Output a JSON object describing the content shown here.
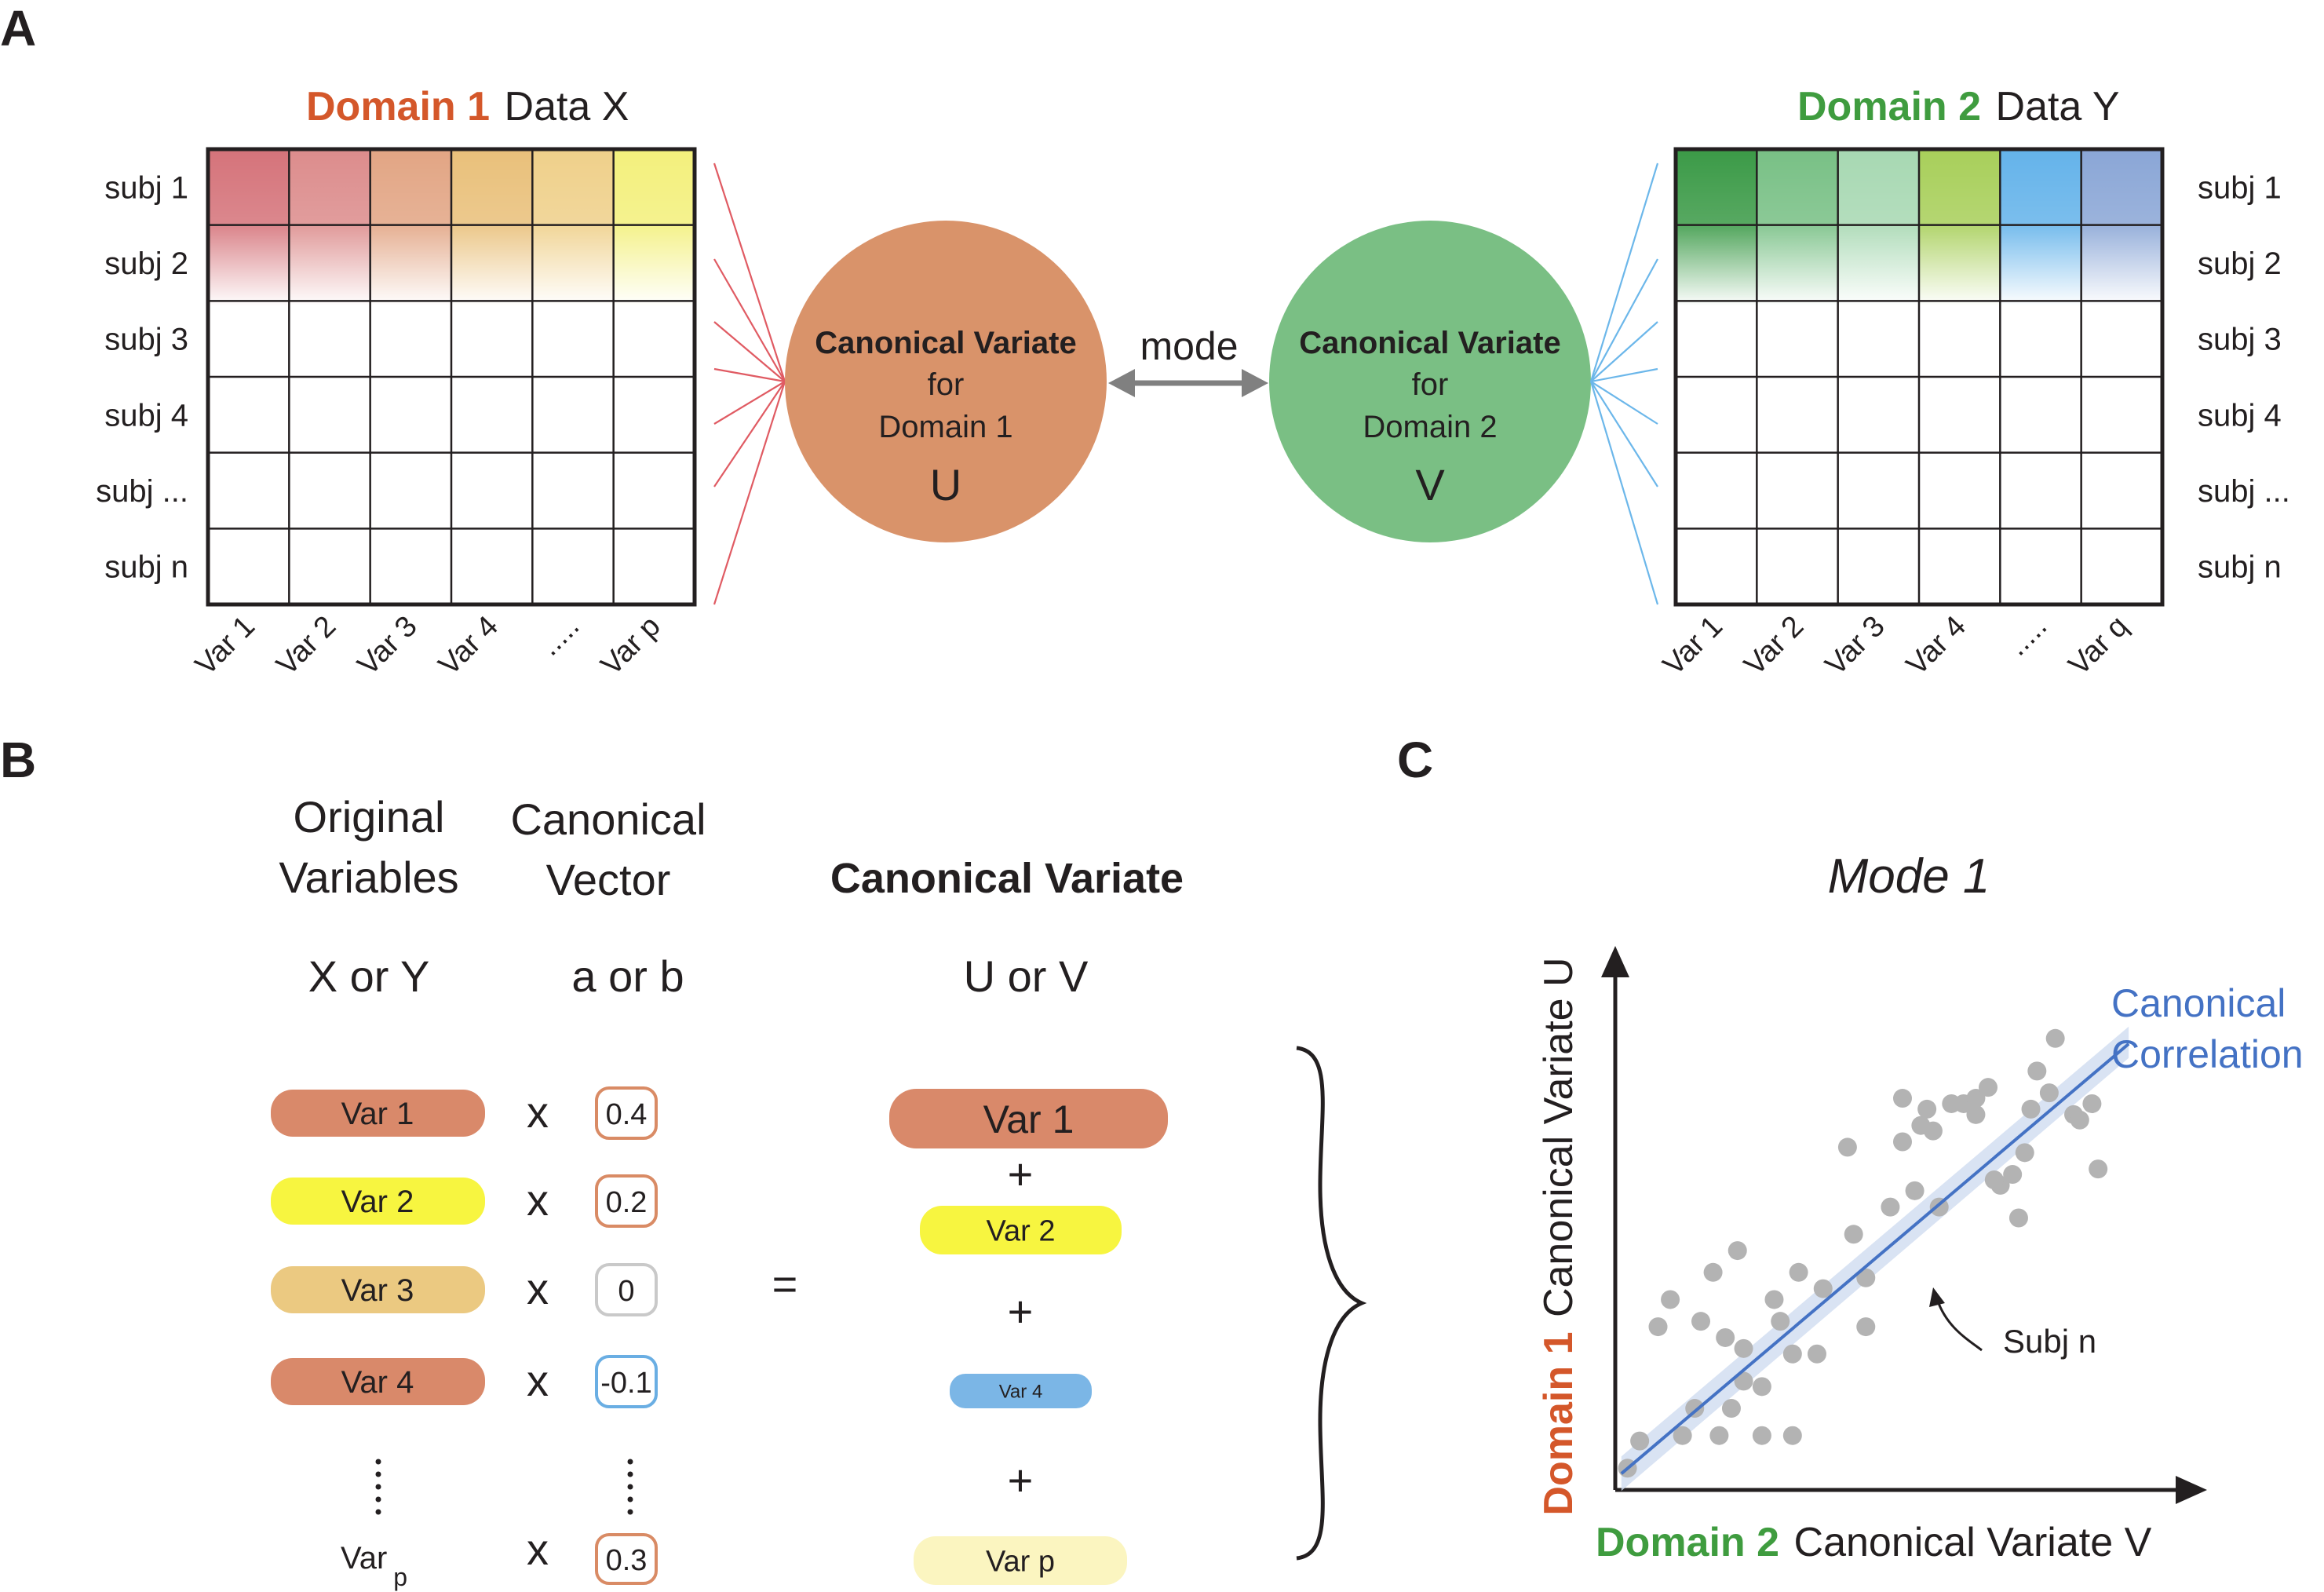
{
  "panels": {
    "a": "A",
    "b": "B",
    "c": "C"
  },
  "panel_a": {
    "domain1": {
      "domain_label": "Domain 1",
      "rest_label": "Data X",
      "color": "#d4572a",
      "rows": [
        "subj 1",
        "subj 2",
        "subj 3",
        "subj 4",
        "subj ...",
        "subj n"
      ],
      "cols": [
        "Var 1",
        "Var 2",
        "Var 3",
        "Var 4",
        ".....",
        "Var p"
      ],
      "col_colors": [
        "#d5737a",
        "#dc8c8c",
        "#e2a584",
        "#e9c07a",
        "#efd08a",
        "#f3f07c"
      ]
    },
    "domain2": {
      "domain_label": "Domain 2",
      "rest_label": "Data Y",
      "color": "#3f9c3f",
      "rows": [
        "subj 1",
        "subj 2",
        "subj 3",
        "subj 4",
        "subj ...",
        "subj n"
      ],
      "cols": [
        "Var 1",
        "Var 2",
        "Var 3",
        "Var 4",
        ".....",
        "Var q"
      ],
      "col_colors": [
        "#3b9a47",
        "#78c085",
        "#a7d8b2",
        "#a8cf5a",
        "#64b3ea",
        "#8aa6d6"
      ]
    },
    "cv1": {
      "title": "Canonical Variate",
      "line2": "for",
      "line3": "Domain 1",
      "symbol": "U",
      "color": "#d9936a"
    },
    "cv2": {
      "title": "Canonical Variate",
      "line2": "for",
      "line3": "Domain 2",
      "symbol": "V",
      "color": "#7abf84"
    },
    "mode_label": "mode"
  },
  "panel_b": {
    "headers": {
      "orig_line1": "Original",
      "orig_line2": "Variables",
      "orig_sub": "X or Y",
      "vec_line1": "Canonical",
      "vec_line2": "Vector",
      "vec_sub": "a or b",
      "var_title": "Canonical Variate",
      "var_sub": "U or V"
    },
    "rows": [
      {
        "label": "Var 1",
        "color": "#d9896a",
        "op": "x",
        "coef": "0.4",
        "coef_border": "#d98b65"
      },
      {
        "label": "Var 2",
        "color": "#f7f540",
        "op": "x",
        "coef": "0.2",
        "coef_border": "#d98b65"
      },
      {
        "label": "Var 3",
        "color": "#ebc981",
        "op": "x",
        "coef": "0",
        "coef_border": "#c9c9c9"
      },
      {
        "label": "Var 4",
        "color": "#d9896a",
        "op": "x",
        "coef": "-0.1",
        "coef_border": "#6aaee3"
      }
    ],
    "last_row": {
      "label": "Var",
      "sub": "p",
      "op": "x",
      "coef": "0.3",
      "coef_border": "#d98b65"
    },
    "equals": "=",
    "result": [
      {
        "label": "Var 1",
        "color": "#d9896a"
      },
      {
        "label": "Var 2",
        "color": "#f7f540"
      },
      {
        "label": "Var 4",
        "color": "#7bb6e6"
      },
      {
        "label": "Var p",
        "color": "#fbf5c0"
      }
    ],
    "plus": "+"
  },
  "panel_c": {
    "title": "Mode 1",
    "y_axis_domain": "Domain 1",
    "y_axis_rest": "Canonical Variate U",
    "x_axis_domain": "Domain 2",
    "x_axis_rest": "Canonical Variate V",
    "line_label_1": "Canonical",
    "line_label_2": "Correlation",
    "annotation": "Subj n",
    "domain1_color": "#d4572a",
    "domain2_color": "#3f9c3f",
    "line_color": "#4472c4"
  },
  "chart_data": {
    "type": "scatter",
    "title": "Mode 1",
    "xlabel": "Domain 2 Canonical Variate V",
    "ylabel": "Domain 1 Canonical Variate U",
    "x": [
      0.1,
      0.2,
      0.55,
      0.85,
      0.65,
      0.95,
      1.2,
      1.05,
      1.05,
      0.35,
      0.7,
      0.9,
      0.45,
      1.35,
      1.45,
      1.2,
      1.3,
      1.65,
      1.5,
      1.7,
      1.95,
      2.05,
      2.25,
      1.9,
      2.35,
      2.45,
      2.5,
      2.65,
      2.35,
      2.55,
      2.6,
      2.75,
      2.85,
      2.95,
      3.05,
      3.15,
      3.25,
      3.35,
      3.4,
      3.45,
      3.55,
      3.6,
      3.75,
      3.8,
      3.9,
      3.95,
      3.1,
      2.95,
      3.3,
      1.0,
      0.8,
      1.45
    ],
    "y": [
      0.2,
      0.45,
      0.5,
      0.5,
      0.75,
      0.75,
      0.5,
      1.0,
      1.3,
      1.5,
      1.55,
      1.4,
      1.75,
      1.55,
      0.5,
      0.95,
      1.75,
      1.25,
      2.0,
      1.85,
      2.35,
      1.95,
      2.6,
      3.15,
      3.2,
      2.75,
      3.35,
      2.6,
      3.6,
      3.5,
      3.3,
      3.55,
      3.55,
      3.6,
      3.7,
      2.8,
      2.9,
      3.1,
      3.5,
      3.85,
      3.65,
      4.15,
      3.45,
      3.4,
      3.55,
      2.95,
      2.85,
      3.45,
      2.5,
      2.2,
      2.0,
      1.25
    ],
    "fit_line": {
      "x": [
        0.05,
        4.2
      ],
      "y": [
        0.15,
        4.1
      ]
    },
    "annotated_point": {
      "label": "Subj n",
      "x": 2.05,
      "y": 1.5
    },
    "xlim": [
      0,
      4.7
    ],
    "ylim": [
      0,
      5.0
    ]
  }
}
